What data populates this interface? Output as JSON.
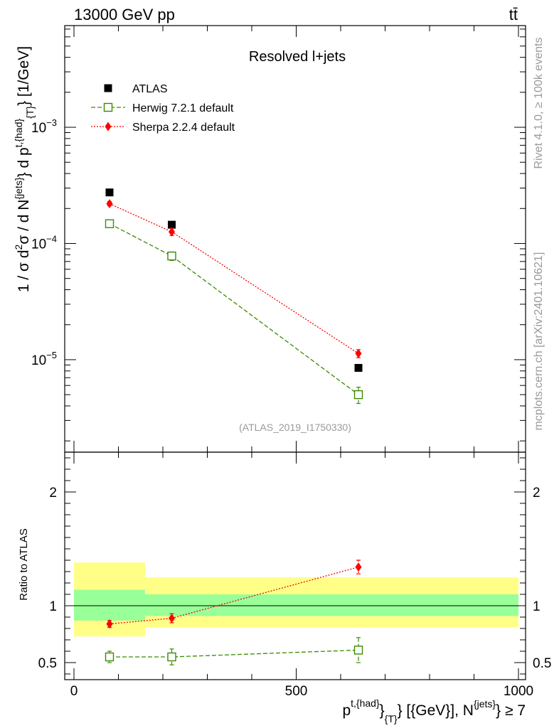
{
  "header": {
    "left": "13000 GeV pp",
    "right": "tt̄"
  },
  "side_text": {
    "rivet": "Rivet 4.1.0, ≥ 100k events",
    "mcplots": "mcplots.cern.ch [arXiv:2401.10621]"
  },
  "chart_data": [
    {
      "type": "scatter",
      "panel": "main",
      "title": "Resolved l+jets",
      "analysis_id": "(ATLAS_2019_I1750330)",
      "ylabel": "1 / σ d²σ / d N^{jets} d p^{t,{had}}_{T} [1/GeV]",
      "yscale": "log",
      "ylim": [
        1.6e-06,
        0.0075
      ],
      "xlim": [
        -20,
        1000
      ],
      "yticks": [
        {
          "value": 0.001,
          "mantissa": "10",
          "exp": "−3"
        },
        {
          "value": 0.0001,
          "mantissa": "10",
          "exp": "−4"
        },
        {
          "value": 1e-05,
          "mantissa": "10",
          "exp": "−5"
        }
      ],
      "legend_position": "top-left",
      "series": [
        {
          "name": "ATLAS",
          "color": "#000000",
          "marker": "square-filled",
          "line": "none",
          "x": [
            80,
            220,
            640
          ],
          "y": [
            0.000275,
            0.000145,
            8.5e-06
          ],
          "err": [
            0,
            0,
            0
          ]
        },
        {
          "name": "Herwig 7.2.1 default",
          "color": "#3a8a00",
          "marker": "square-open",
          "line": "dashed",
          "x": [
            80,
            220,
            640
          ],
          "y": [
            0.000148,
            7.8e-05,
            5e-06
          ],
          "err": [
            5e-06,
            6.5e-06,
            8e-07
          ]
        },
        {
          "name": "Sherpa 2.2.4 default",
          "color": "#ff0000",
          "marker": "diamond-filled",
          "line": "dotted",
          "x": [
            80,
            220,
            640
          ],
          "y": [
            0.00022,
            0.000126,
            1.13e-05
          ],
          "err": [
            9e-06,
            9e-06,
            9e-07
          ]
        }
      ]
    },
    {
      "type": "scatter",
      "panel": "ratio",
      "ylabel": "Ratio to ATLAS",
      "xlabel": "p^{t,{had}}_{T} [{GeV}], N^{jets} ≥ 7",
      "ylim": [
        0.35,
        2.35
      ],
      "xlim": [
        -20,
        1000
      ],
      "xticks": [
        0,
        500,
        1000
      ],
      "yticks": [
        0.5,
        1,
        2
      ],
      "reference_line": 1,
      "uncertainty_bands": {
        "edges": [
          0,
          160,
          1000
        ],
        "stat": {
          "color": "#99ff99",
          "low": [
            0.87,
            0.91
          ],
          "high": [
            1.14,
            1.1
          ]
        },
        "total": {
          "color": "#ffff88",
          "low": [
            0.73,
            0.81
          ],
          "high": [
            1.38,
            1.25
          ]
        }
      },
      "series": [
        {
          "name": "Herwig 7.2.1 default",
          "color": "#3a8a00",
          "marker": "square-open",
          "line": "dashed",
          "x": [
            80,
            220,
            640
          ],
          "y": [
            0.55,
            0.55,
            0.61
          ],
          "err": [
            0.05,
            0.07,
            0.11
          ]
        },
        {
          "name": "Sherpa 2.2.4 default",
          "color": "#ff0000",
          "marker": "diamond-filled",
          "line": "dotted",
          "x": [
            80,
            220,
            640
          ],
          "y": [
            0.84,
            0.89,
            1.34
          ],
          "err": [
            0.03,
            0.04,
            0.06
          ]
        }
      ]
    }
  ]
}
